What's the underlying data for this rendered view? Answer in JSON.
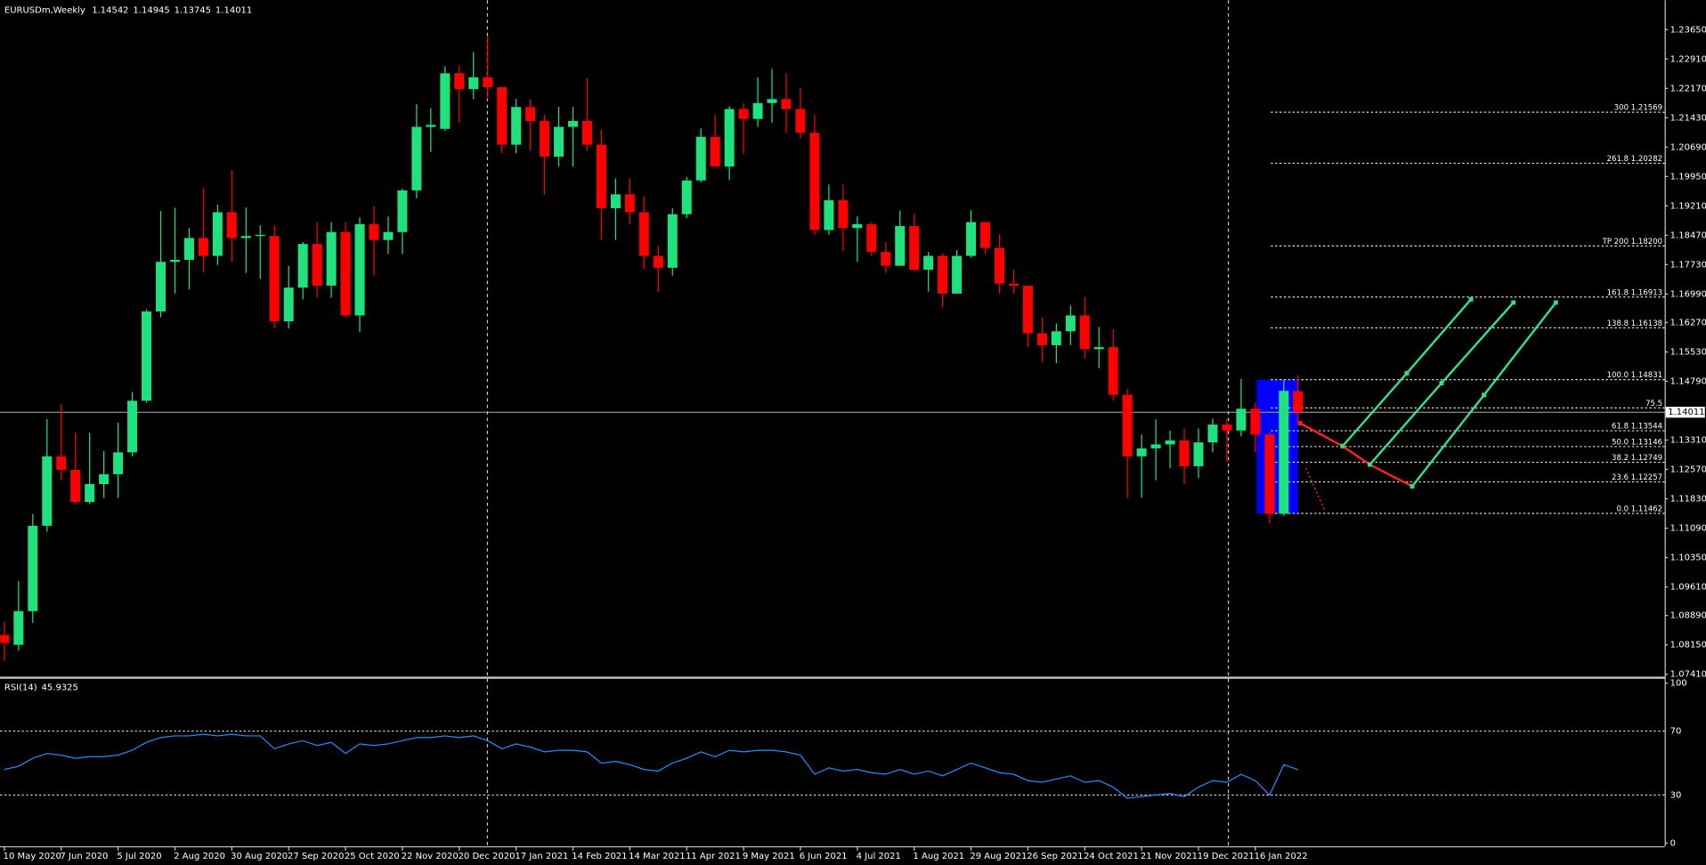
{
  "chart_data": [
    {
      "type": "candlestick",
      "title": "EURUSDm,Weekly",
      "categories": [
        "10 May 2020",
        null,
        null,
        null,
        "7 Jun 2020",
        null,
        null,
        null,
        "5 Jul 2020",
        null,
        null,
        null,
        "2 Aug 2020",
        null,
        null,
        null,
        "30 Aug 2020",
        null,
        null,
        null,
        "27 Sep 2020",
        null,
        null,
        null,
        "25 Oct 2020",
        null,
        null,
        null,
        "22 Nov 2020",
        null,
        null,
        null,
        "20 Dec 2020",
        null,
        null,
        null,
        "17 Jan 2021",
        null,
        null,
        null,
        "14 Feb 2021",
        null,
        null,
        null,
        "14 Mar 2021",
        null,
        null,
        null,
        "11 Apr 2021",
        null,
        null,
        null,
        "9 May 2021",
        null,
        null,
        null,
        "6 Jun 2021",
        null,
        null,
        null,
        "4 Jul 2021",
        null,
        null,
        null,
        "1 Aug 2021",
        null,
        null,
        null,
        "29 Aug 2021",
        null,
        null,
        null,
        "26 Sep 2021",
        null,
        null,
        null,
        "24 Oct 2021",
        null,
        null,
        null,
        "21 Nov 2021",
        null,
        null,
        null,
        "19 Dec 2021",
        null,
        null,
        null,
        "16 Jan 2022",
        null,
        null,
        null
      ],
      "open": [
        1.084,
        1.0815,
        1.09,
        1.1115,
        1.129,
        1.1256,
        1.1175,
        1.122,
        1.1245,
        1.13,
        1.143,
        1.1655,
        1.178,
        1.1785,
        1.184,
        1.1795,
        1.1905,
        1.184,
        1.1845,
        1.1845,
        1.163,
        1.1715,
        1.1825,
        1.172,
        1.1855,
        1.1645,
        1.1875,
        1.1835,
        1.1855,
        1.196,
        1.212,
        1.2115,
        1.2255,
        1.2215,
        1.2245,
        1.222,
        1.2075,
        1.217,
        1.2135,
        1.2045,
        1.212,
        1.2135,
        1.2075,
        1.1915,
        1.195,
        1.1905,
        1.1795,
        1.1765,
        1.19,
        1.1985,
        1.2095,
        1.202,
        1.2165,
        1.214,
        1.218,
        1.219,
        1.2165,
        1.2105,
        1.186,
        1.1935,
        1.1865,
        1.1875,
        1.1805,
        1.177,
        1.187,
        1.176,
        1.1795,
        1.17,
        1.1795,
        1.188,
        1.1815,
        1.1725,
        1.172,
        1.16,
        1.157,
        1.1605,
        1.1645,
        1.156,
        1.1565,
        1.1445,
        1.129,
        1.131,
        1.132,
        1.133,
        1.1265,
        1.1325,
        1.137,
        1.1355,
        1.141,
        1.1345,
        1.1145,
        1.14542
      ],
      "high": [
        1.0874,
        1.0976,
        1.1145,
        1.1384,
        1.1422,
        1.135,
        1.1349,
        1.1303,
        1.1375,
        1.1452,
        1.166,
        1.1908,
        1.1916,
        1.1865,
        1.1966,
        1.1924,
        1.2011,
        1.1917,
        1.1872,
        1.1872,
        1.177,
        1.183,
        1.188,
        1.188,
        1.188,
        1.1892,
        1.192,
        1.1894,
        1.1965,
        1.2177,
        1.2167,
        1.2273,
        1.2275,
        1.2309,
        1.2349,
        1.222,
        1.219,
        1.219,
        1.215,
        1.217,
        1.217,
        1.2243,
        1.2113,
        1.199,
        1.199,
        1.1945,
        1.182,
        1.1915,
        1.1994,
        1.2116,
        1.215,
        1.2172,
        1.218,
        1.2245,
        1.2266,
        1.2255,
        1.2218,
        1.215,
        1.1975,
        1.1975,
        1.1895,
        1.188,
        1.183,
        1.1909,
        1.19,
        1.1805,
        1.18,
        1.181,
        1.191,
        1.188,
        1.185,
        1.176,
        1.172,
        1.164,
        1.1625,
        1.167,
        1.1692,
        1.1616,
        1.161,
        1.146,
        1.1345,
        1.1383,
        1.1355,
        1.136,
        1.136,
        1.1385,
        1.1385,
        1.1485,
        1.1425,
        1.135,
        1.1483,
        1.14945
      ],
      "low": [
        1.0775,
        1.08,
        1.087,
        1.11,
        1.123,
        1.117,
        1.117,
        1.1185,
        1.1185,
        1.129,
        1.1425,
        1.164,
        1.17,
        1.171,
        1.1753,
        1.1772,
        1.178,
        1.1752,
        1.1737,
        1.1612,
        1.1612,
        1.1685,
        1.169,
        1.169,
        1.164,
        1.1603,
        1.1745,
        1.18,
        1.18,
        1.194,
        1.2057,
        1.211,
        1.213,
        1.219,
        1.219,
        1.2054,
        1.2054,
        1.206,
        1.195,
        1.202,
        1.202,
        1.206,
        1.1835,
        1.1835,
        1.1875,
        1.1762,
        1.1704,
        1.1745,
        1.189,
        1.198,
        1.202,
        1.1986,
        1.2052,
        1.212,
        1.213,
        1.2105,
        1.209,
        1.1847,
        1.1848,
        1.1807,
        1.178,
        1.1795,
        1.1752,
        1.177,
        1.1755,
        1.1705,
        1.1665,
        1.17,
        1.179,
        1.18,
        1.17,
        1.17,
        1.1565,
        1.1528,
        1.1525,
        1.157,
        1.1535,
        1.1512,
        1.143,
        1.1185,
        1.1186,
        1.123,
        1.126,
        1.122,
        1.1235,
        1.13,
        1.1275,
        1.134,
        1.13,
        1.1121,
        1.114,
        1.13745
      ],
      "close": [
        1.082,
        1.09,
        1.1115,
        1.129,
        1.1256,
        1.1175,
        1.122,
        1.1245,
        1.13,
        1.143,
        1.1655,
        1.178,
        1.1785,
        1.184,
        1.1795,
        1.1905,
        1.184,
        1.1845,
        1.1848,
        1.163,
        1.1715,
        1.1825,
        1.172,
        1.1855,
        1.1645,
        1.1875,
        1.1835,
        1.1855,
        1.196,
        1.212,
        1.2125,
        1.2255,
        1.2215,
        1.2245,
        1.222,
        1.2075,
        1.217,
        1.2135,
        1.2045,
        1.212,
        1.2135,
        1.2075,
        1.1915,
        1.195,
        1.1905,
        1.1795,
        1.1765,
        1.19,
        1.1985,
        1.2095,
        1.202,
        1.2165,
        1.214,
        1.218,
        1.219,
        1.2165,
        1.2105,
        1.186,
        1.1935,
        1.1865,
        1.1875,
        1.1805,
        1.177,
        1.187,
        1.176,
        1.1795,
        1.17,
        1.1795,
        1.188,
        1.1815,
        1.1725,
        1.172,
        1.16,
        1.157,
        1.1605,
        1.1645,
        1.156,
        1.1565,
        1.1445,
        1.129,
        1.131,
        1.132,
        1.133,
        1.1265,
        1.1325,
        1.137,
        1.1355,
        1.141,
        1.1345,
        1.1145,
        1.1455,
        1.14011
      ],
      "up_color": "#1fe27f",
      "down_color": "#ff0000",
      "ylim": [
        1.0735,
        1.2439
      ],
      "yticks": [
        {
          "value": 1.2365,
          "label": "1.23650"
        },
        {
          "value": 1.2291,
          "label": "1.22910"
        },
        {
          "value": 1.2217,
          "label": "1.22170"
        },
        {
          "value": 1.2143,
          "label": "1.21430"
        },
        {
          "value": 1.2069,
          "label": "1.20690"
        },
        {
          "value": 1.1995,
          "label": "1.19950"
        },
        {
          "value": 1.1921,
          "label": "1.19210"
        },
        {
          "value": 1.1847,
          "label": "1.18470"
        },
        {
          "value": 1.1773,
          "label": "1.17730"
        },
        {
          "value": 1.1699,
          "label": "1.16990"
        },
        {
          "value": 1.1627,
          "label": "1.16270"
        },
        {
          "value": 1.1553,
          "label": "1.15530"
        },
        {
          "value": 1.1479,
          "label": "1.14790"
        },
        {
          "value": 1.1331,
          "label": "1.13310"
        },
        {
          "value": 1.1257,
          "label": "1.12570"
        },
        {
          "value": 1.1183,
          "label": "1.11830"
        },
        {
          "value": 1.1109,
          "label": "1.11090"
        },
        {
          "value": 1.1035,
          "label": "1.10350"
        },
        {
          "value": 1.0961,
          "label": "1.09610"
        },
        {
          "value": 1.0889,
          "label": "1.08890"
        },
        {
          "value": 1.0815,
          "label": "1.08150"
        },
        {
          "value": 1.0741,
          "label": "1.07410"
        }
      ],
      "annotations": [
        {
          "label": "300 1.21569",
          "value": 1.21569
        },
        {
          "label": "261.8 1.20282",
          "value": 1.20282
        },
        {
          "label": "TP 200 1.18200",
          "value": 1.182
        },
        {
          "label": "161.8 1.16913",
          "value": 1.16913
        },
        {
          "label": "138.8 1.16138",
          "value": 1.16138
        },
        {
          "label": "100.0 1.14831",
          "value": 1.14831
        },
        {
          "label": "75.5",
          "value": 1.1412
        },
        {
          "label": "61.8 1.13544",
          "value": 1.13544
        },
        {
          "label": "50.0 1.13146",
          "value": 1.13146
        },
        {
          "label": "38.2 1.12749",
          "value": 1.12749
        },
        {
          "label": "23.6 1.12257",
          "value": 1.12257
        },
        {
          "label": "0.0 1.11462",
          "value": 1.11462
        }
      ]
    },
    {
      "type": "line",
      "series": [
        {
          "name": "RSI(14)",
          "color": "#1e90ff",
          "values": [
            46,
            48,
            53,
            56,
            55,
            53,
            54,
            54,
            55,
            58,
            63,
            66,
            67,
            67,
            68,
            67,
            68,
            67,
            67,
            59,
            62,
            64,
            61,
            63,
            56,
            62,
            61,
            62,
            64,
            66,
            66,
            67,
            66,
            67,
            64,
            59,
            62,
            60,
            57,
            58,
            58,
            57,
            50,
            51,
            49,
            46,
            45,
            50,
            53,
            57,
            54,
            58,
            57,
            58,
            58,
            57,
            55,
            43,
            47,
            45,
            46,
            44,
            43,
            46,
            43,
            45,
            42,
            46,
            50,
            47,
            44,
            43,
            39,
            38,
            40,
            42,
            38,
            39,
            35,
            28,
            29,
            30,
            31,
            29,
            35,
            39,
            38,
            43,
            39,
            30,
            49,
            45.9325
          ]
        }
      ],
      "ylim": [
        0,
        100
      ],
      "yticks": [
        100,
        70,
        30,
        0
      ]
    }
  ]
}
